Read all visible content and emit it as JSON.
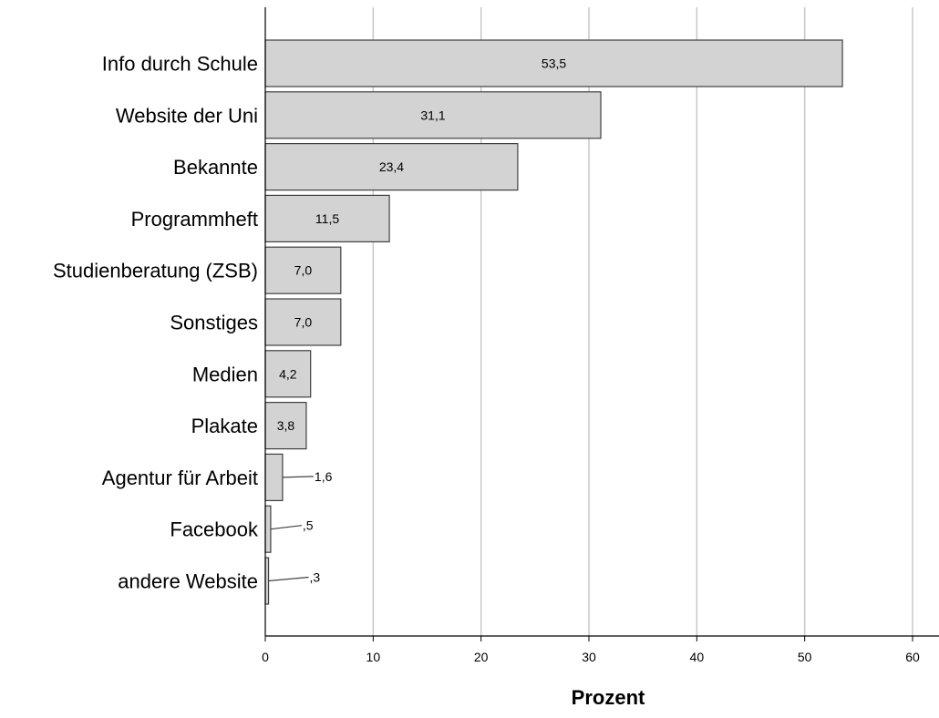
{
  "chart_data": {
    "type": "bar",
    "orientation": "horizontal",
    "title": "",
    "xlabel": "Prozent",
    "ylabel": "",
    "categories": [
      "Info durch Schule",
      "Website der Uni",
      "Bekannte",
      "Programmheft",
      "Studienberatung (ZSB)",
      "Sonstiges",
      "Medien",
      "Plakate",
      "Agentur für Arbeit",
      "Facebook",
      "andere Website"
    ],
    "values": [
      53.5,
      31.1,
      23.4,
      11.5,
      7.0,
      7.0,
      4.2,
      3.8,
      1.6,
      0.5,
      0.3
    ],
    "value_labels": [
      "53,5",
      "31,1",
      "23,4",
      "11,5",
      "7,0",
      "7,0",
      "4,2",
      "3,8",
      "1,6",
      ",5",
      ",3"
    ],
    "xlim": [
      0,
      62
    ],
    "xticks": [
      0,
      10,
      20,
      30,
      40,
      50,
      60
    ],
    "grid": "vertical",
    "colors": {
      "bar_fill": "#d3d3d3",
      "bar_stroke": "#404040",
      "grid": "#c8c8c8",
      "axis": "#000000",
      "text": "#000000"
    }
  }
}
